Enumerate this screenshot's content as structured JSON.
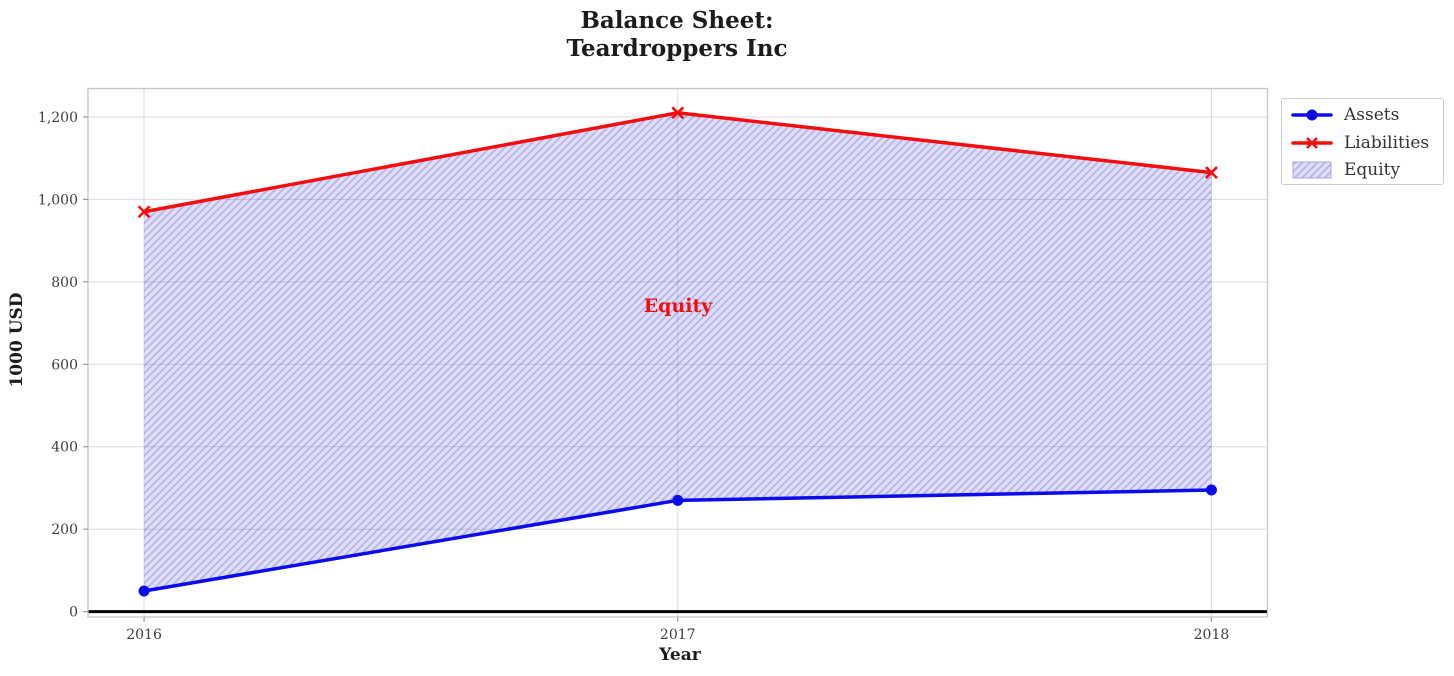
{
  "title": {
    "line1": "Balance Sheet:",
    "line2": "Teardroppers Inc"
  },
  "axes": {
    "x_label": "Year",
    "y_label": "1000 USD"
  },
  "annotation": {
    "label": "Equity",
    "color": "#f50d0d"
  },
  "legend": {
    "items": [
      {
        "label": "Assets",
        "marker": "line-with-circle",
        "color": "#0b0bee"
      },
      {
        "label": "Liabilities",
        "marker": "line-with-x",
        "color": "#f50d0d"
      },
      {
        "label": "Equity",
        "marker": "hatched-patch",
        "color": "#dfdcf6"
      }
    ]
  },
  "colors": {
    "assets_line": "#0b0bee",
    "liabilities_line": "#f50d0d",
    "equity_fill_base": "#3a3ad8",
    "equity_hatch_line": "#5050cc",
    "grid_line": "#dbdbdb",
    "plot_border": "#c6c6c6",
    "zero_line": "#000000",
    "text": "#1c1c1c"
  },
  "chart_data": {
    "type": "line",
    "title": "Balance Sheet: Teardroppers Inc",
    "xlabel": "Year",
    "ylabel": "1000 USD",
    "x": [
      2016,
      2017,
      2018
    ],
    "xticklabels": [
      "2016",
      "2017",
      "2018"
    ],
    "yticks": [
      0,
      200,
      400,
      600,
      800,
      1000,
      1200
    ],
    "yticklabels": [
      "0",
      "200",
      "400",
      "600",
      "800",
      "1,000",
      "1,200"
    ],
    "xlim": [
      2015.895,
      2018.105
    ],
    "ylim": [
      -13,
      1269
    ],
    "grid": true,
    "series": [
      {
        "name": "Assets",
        "values": [
          50,
          270,
          295
        ],
        "color": "#0b0bee",
        "marker": "circle"
      },
      {
        "name": "Liabilities",
        "values": [
          970,
          1210,
          1065
        ],
        "color": "#f50d0d",
        "marker": "x"
      }
    ],
    "fill_between": {
      "name": "Equity",
      "between": [
        "Assets",
        "Liabilities"
      ],
      "x_range": [
        2016,
        2018
      ],
      "style": "light blue fill with '//' diagonal hatching"
    },
    "annotations": [
      {
        "text": "Equity",
        "x": 2017,
        "y": 740,
        "color": "#f50d0d",
        "bold": true
      }
    ],
    "legend_entries": [
      "Assets",
      "Liabilities",
      "Equity"
    ],
    "legend_position": "outside upper right",
    "zero_axhline": true
  }
}
